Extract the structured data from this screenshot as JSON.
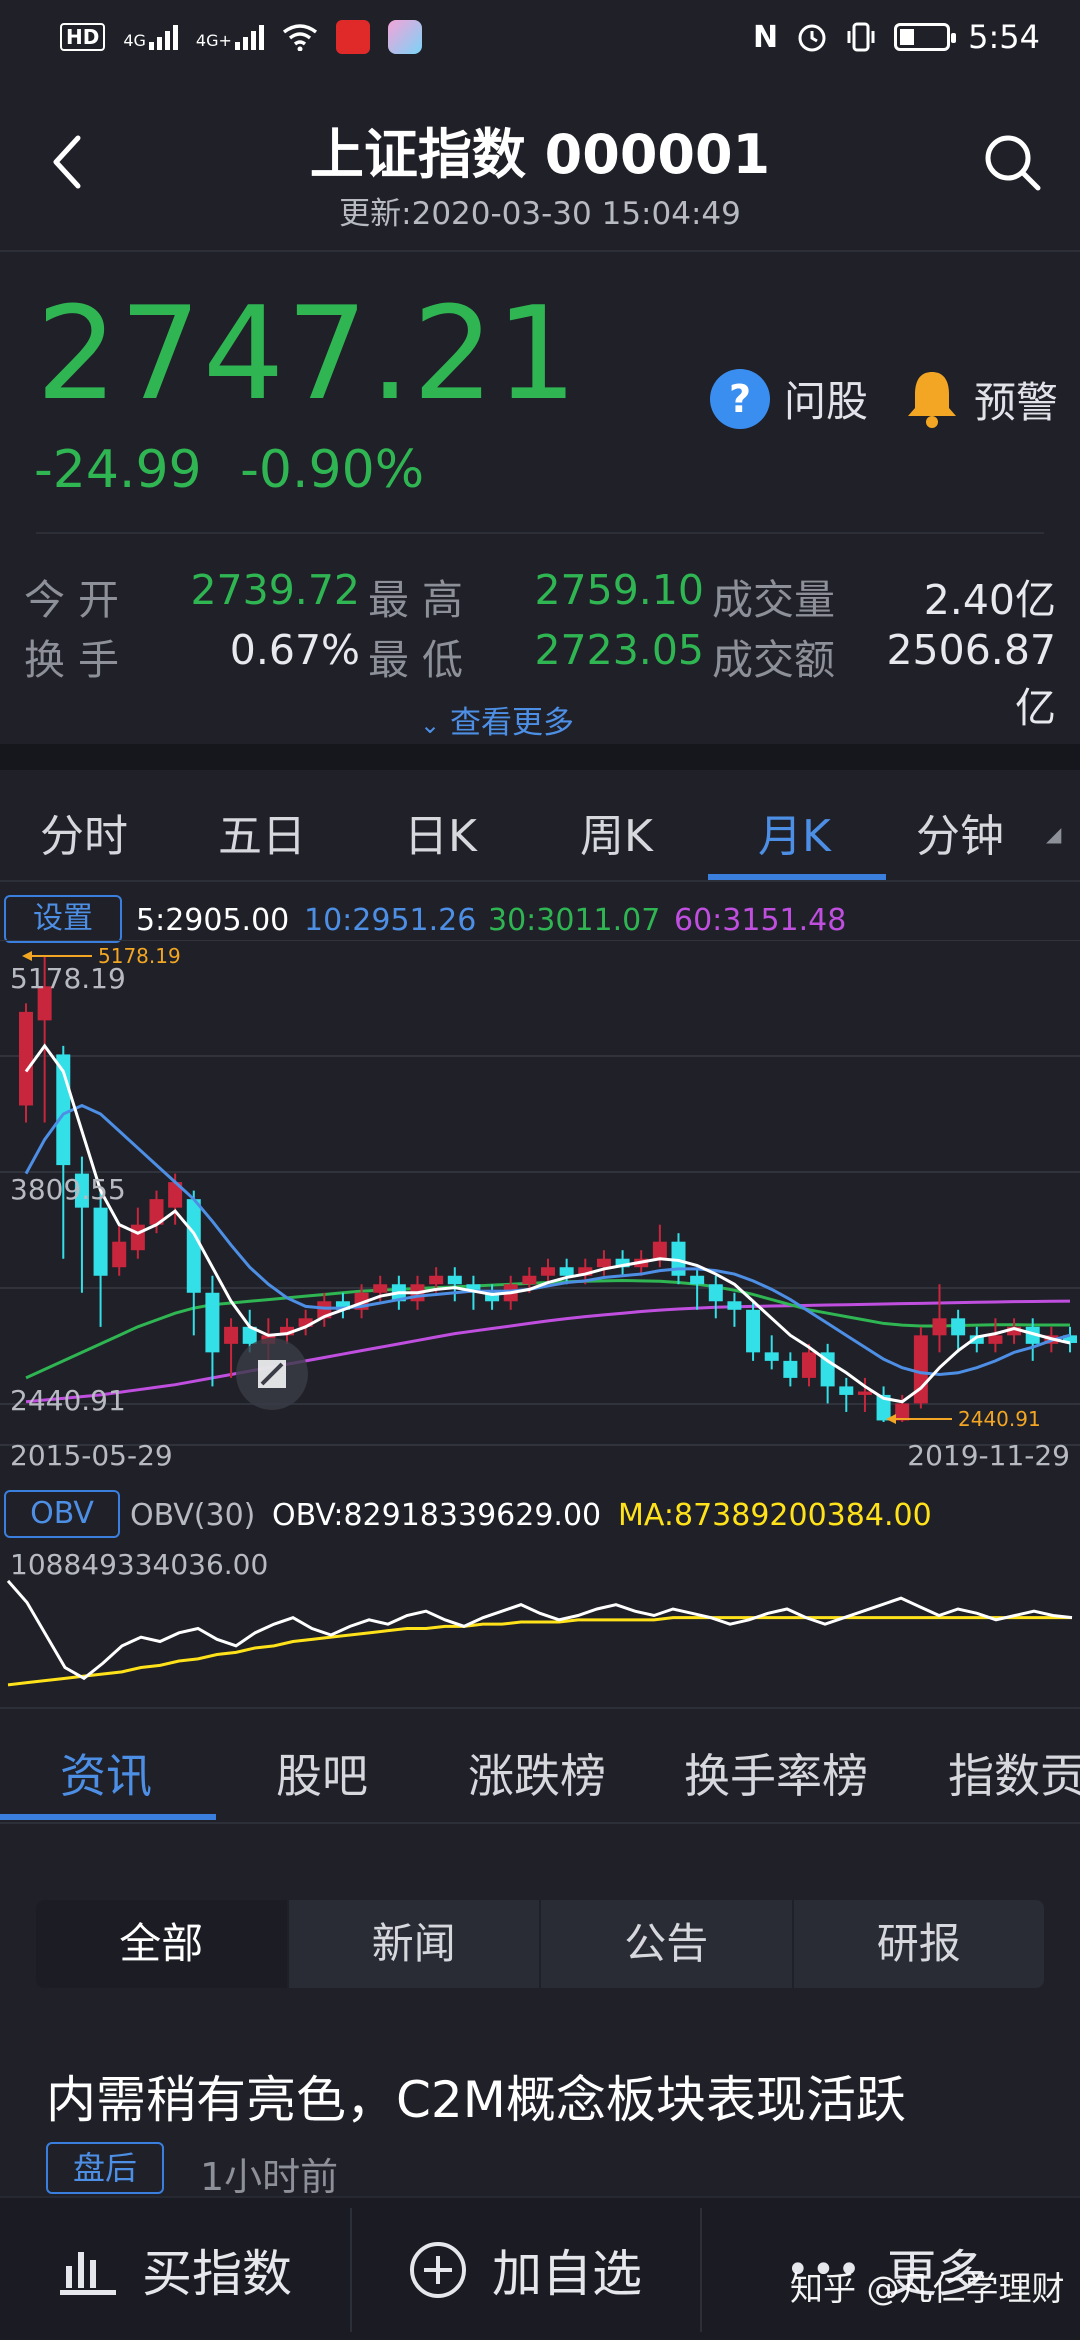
{
  "status_bar": {
    "network_badge": "HD",
    "signal1": "4G",
    "signal2": "4G+",
    "time": "5:54",
    "icons": [
      "hd-icon",
      "signal-icon",
      "signal-icon",
      "wifi-icon",
      "bank-app-icon",
      "app-icon",
      "nfc-icon",
      "alarm-icon",
      "vibrate-icon",
      "battery-icon"
    ]
  },
  "header": {
    "title": "上证指数 000001",
    "updated": "更新:2020-03-30 15:04:49"
  },
  "quote": {
    "price": "2747.21",
    "change": "-24.99",
    "change_pct": "-0.90%",
    "ask_label": "问股",
    "alert_label": "预警",
    "up_color": "#c8263c",
    "down_color": "#2fb552"
  },
  "stats": {
    "open_label": "今 开",
    "open": "2739.72",
    "high_label": "最 高",
    "high": "2759.10",
    "volume_label": "成交量",
    "volume": "2.40亿",
    "turnover_label": "换 手",
    "turnover": "0.67%",
    "low_label": "最 低",
    "low": "2723.05",
    "amount_label": "成交额",
    "amount": "2506.87亿",
    "more_label": "查看更多"
  },
  "kline_tabs": [
    "分时",
    "五日",
    "日K",
    "周K",
    "月K",
    "分钟"
  ],
  "kline_active": "月K",
  "ma_legend": {
    "settings_label": "设置",
    "ma5": "5:2905.00",
    "ma10": "10:2951.26",
    "ma30": "30:3011.07",
    "ma60": "60:3151.48",
    "colors": {
      "ma5": "#ffffff",
      "ma10": "#4e8fe6",
      "ma30": "#2fb552",
      "ma60": "#c04fe0"
    }
  },
  "chart_data": {
    "type": "candlestick",
    "y_labels": {
      "top": "5178.19",
      "mid": "3809.55",
      "bottom": "2440.91"
    },
    "max_marker": "5178.19",
    "min_marker": "2440.91",
    "x_start": "2015-05-29",
    "x_end": "2019-11-29",
    "ylim": [
      2440.91,
      5178.19
    ],
    "candles": [
      [
        4300,
        4850,
        4200,
        4900
      ],
      [
        4800,
        5000,
        4200,
        5178.19
      ],
      [
        4600,
        3950,
        3400,
        4650
      ],
      [
        3900,
        3700,
        3200,
        4000
      ],
      [
        3700,
        3300,
        3000,
        3800
      ],
      [
        3350,
        3500,
        3300,
        3600
      ],
      [
        3450,
        3600,
        3400,
        3700
      ],
      [
        3600,
        3750,
        3550,
        3800
      ],
      [
        3700,
        3850,
        3600,
        3900
      ],
      [
        3750,
        3200,
        2950,
        3800
      ],
      [
        3200,
        2850,
        2650,
        3300
      ],
      [
        2900,
        3000,
        2700,
        3050
      ],
      [
        3000,
        2900,
        2850,
        3100
      ],
      [
        2900,
        2950,
        2800,
        3050
      ],
      [
        2950,
        3000,
        2900,
        3050
      ],
      [
        3000,
        3050,
        2950,
        3100
      ],
      [
        3050,
        3150,
        3000,
        3200
      ],
      [
        3150,
        3100,
        3050,
        3200
      ],
      [
        3100,
        3200,
        3050,
        3250
      ],
      [
        3200,
        3250,
        3150,
        3300
      ],
      [
        3250,
        3150,
        3100,
        3300
      ],
      [
        3150,
        3250,
        3100,
        3300
      ],
      [
        3250,
        3300,
        3200,
        3350
      ],
      [
        3300,
        3250,
        3150,
        3350
      ],
      [
        3250,
        3200,
        3100,
        3300
      ],
      [
        3200,
        3150,
        3100,
        3250
      ],
      [
        3150,
        3250,
        3100,
        3300
      ],
      [
        3250,
        3300,
        3200,
        3350
      ],
      [
        3300,
        3350,
        3250,
        3400
      ],
      [
        3350,
        3300,
        3250,
        3400
      ],
      [
        3300,
        3350,
        3250,
        3400
      ],
      [
        3350,
        3400,
        3300,
        3450
      ],
      [
        3400,
        3350,
        3300,
        3450
      ],
      [
        3350,
        3400,
        3300,
        3450
      ],
      [
        3400,
        3500,
        3350,
        3600
      ],
      [
        3500,
        3300,
        3250,
        3550
      ],
      [
        3300,
        3250,
        3100,
        3350
      ],
      [
        3250,
        3150,
        3050,
        3300
      ],
      [
        3150,
        3100,
        3000,
        3200
      ],
      [
        3100,
        2850,
        2800,
        3150
      ],
      [
        2850,
        2800,
        2750,
        2950
      ],
      [
        2800,
        2700,
        2650,
        2850
      ],
      [
        2700,
        2850,
        2650,
        2900
      ],
      [
        2850,
        2650,
        2550,
        2900
      ],
      [
        2650,
        2600,
        2500,
        2700
      ],
      [
        2600,
        2620,
        2500,
        2700
      ],
      [
        2600,
        2450,
        2440.91,
        2650
      ],
      [
        2450,
        2550,
        2440.91,
        2600
      ],
      [
        2550,
        2950,
        2520,
        3000
      ],
      [
        2950,
        3050,
        2850,
        3250
      ],
      [
        3050,
        2950,
        2850,
        3100
      ],
      [
        2950,
        2900,
        2850,
        3000
      ],
      [
        2900,
        2950,
        2850,
        3050
      ],
      [
        2950,
        3000,
        2900,
        3050
      ],
      [
        3000,
        2900,
        2800,
        3050
      ],
      [
        2900,
        2950,
        2850,
        3000
      ],
      [
        2950,
        2905,
        2850,
        3000
      ]
    ],
    "ma5": [
      4500,
      4650,
      4500,
      4150,
      3800,
      3600,
      3550,
      3600,
      3680,
      3550,
      3350,
      3150,
      3000,
      2950,
      2960,
      3000,
      3060,
      3100,
      3140,
      3180,
      3200,
      3200,
      3220,
      3230,
      3210,
      3190,
      3200,
      3220,
      3260,
      3290,
      3310,
      3340,
      3360,
      3380,
      3400,
      3390,
      3360,
      3310,
      3250,
      3150,
      3050,
      2950,
      2880,
      2800,
      2730,
      2650,
      2580,
      2560,
      2640,
      2760,
      2860,
      2940,
      2960,
      2990,
      2960,
      2930,
      2905
    ],
    "ma10": [
      3900,
      4100,
      4250,
      4300,
      4250,
      4150,
      4050,
      3950,
      3850,
      3750,
      3620,
      3480,
      3350,
      3250,
      3170,
      3120,
      3110,
      3110,
      3120,
      3140,
      3160,
      3180,
      3190,
      3200,
      3210,
      3210,
      3210,
      3220,
      3240,
      3260,
      3270,
      3290,
      3300,
      3310,
      3330,
      3340,
      3340,
      3330,
      3310,
      3270,
      3220,
      3160,
      3090,
      3020,
      2950,
      2880,
      2810,
      2760,
      2730,
      2720,
      2730,
      2760,
      2800,
      2850,
      2880,
      2920,
      2951
    ],
    "ma30": [
      2700,
      2750,
      2800,
      2850,
      2900,
      2950,
      3000,
      3040,
      3080,
      3110,
      3130,
      3140,
      3150,
      3160,
      3170,
      3180,
      3190,
      3200,
      3210,
      3215,
      3220,
      3225,
      3230,
      3235,
      3240,
      3245,
      3250,
      3255,
      3260,
      3265,
      3268,
      3270,
      3272,
      3270,
      3268,
      3260,
      3250,
      3235,
      3215,
      3190,
      3160,
      3130,
      3100,
      3080,
      3060,
      3040,
      3020,
      3010,
      3005,
      3005,
      3008,
      3010,
      3012,
      3012,
      3011,
      3011,
      3011
    ],
    "ma60": [
      2560,
      2570,
      2580,
      2590,
      2600,
      2615,
      2630,
      2645,
      2660,
      2680,
      2700,
      2720,
      2740,
      2760,
      2780,
      2800,
      2820,
      2840,
      2860,
      2880,
      2900,
      2920,
      2940,
      2960,
      2975,
      2990,
      3005,
      3020,
      3035,
      3048,
      3060,
      3070,
      3080,
      3090,
      3098,
      3105,
      3110,
      3115,
      3118,
      3120,
      3122,
      3124,
      3126,
      3128,
      3130,
      3132,
      3134,
      3136,
      3138,
      3140,
      3142,
      3144,
      3146,
      3148,
      3149,
      3150,
      3151
    ]
  },
  "obv": {
    "settings_label": "OBV",
    "name": "OBV(30)",
    "obv_value": "OBV:82918339629.00",
    "ma_value": "MA:87389200384.00",
    "y_top": "108849334036.00",
    "obv_series": [
      100,
      90,
      75,
      60,
      55,
      62,
      70,
      74,
      72,
      76,
      78,
      73,
      70,
      76,
      80,
      83,
      78,
      75,
      79,
      82,
      80,
      84,
      86,
      82,
      79,
      83,
      86,
      89,
      85,
      82,
      84,
      87,
      89,
      86,
      84,
      87,
      85,
      83,
      80,
      82,
      85,
      87,
      83,
      80,
      83,
      86,
      89,
      92,
      88,
      84,
      87,
      85,
      82,
      84,
      86,
      84,
      83
    ],
    "ma_series": [
      52,
      53,
      54,
      55,
      56,
      57,
      58,
      60,
      61,
      63,
      64,
      66,
      67,
      69,
      70,
      72,
      73,
      74,
      75,
      76,
      77,
      78,
      78,
      79,
      79,
      80,
      80,
      81,
      81,
      81,
      82,
      82,
      82,
      82,
      82,
      83,
      83,
      83,
      83,
      83,
      83,
      83,
      83,
      83,
      83,
      83,
      83,
      83,
      83,
      83,
      83,
      83,
      83,
      83,
      83,
      83,
      83
    ]
  },
  "news_tabs": [
    "资讯",
    "股吧",
    "涨跌榜",
    "换手率榜",
    "指数贡"
  ],
  "news_active": "资讯",
  "segments": [
    "全部",
    "新闻",
    "公告",
    "研报"
  ],
  "news_item": {
    "headline": "内需稍有亮色，C2M概念板块表现活跃",
    "tag": "盘后",
    "time": "1小时前"
  },
  "bottom_bar": {
    "buy_label": "买指数",
    "add_label": "加自选",
    "more_label": "更多",
    "watermark": "知乎 @凡仁学理财"
  }
}
